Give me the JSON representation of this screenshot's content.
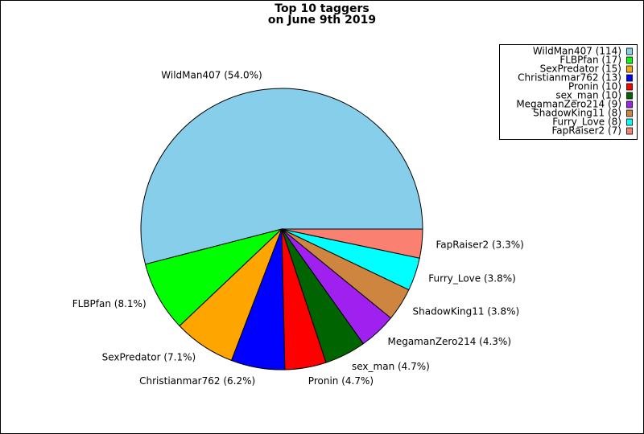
{
  "chart_data": {
    "type": "pie",
    "title": "Top 10 taggers",
    "subtitle": "on June 9th 2019",
    "categories": [
      "WildMan407",
      "FLBPfan",
      "SexPredator",
      "Christianmar762",
      "Pronin",
      "sex_man",
      "MegamanZero214",
      "ShadowKing11",
      "Furry_Love",
      "FapRaiser2"
    ],
    "values": [
      114,
      17,
      15,
      13,
      10,
      10,
      9,
      8,
      8,
      7
    ],
    "value_labels": [
      "WildMan407 (54.0%)",
      "FLBPfan (8.1%)",
      "SexPredator (7.1%)",
      "Christianmar762 (6.2%)",
      "Pronin (4.7%)",
      "sex_man (4.7%)",
      "MegamanZero214 (4.3%)",
      "ShadowKing11 (3.8%)",
      "Furry_Love (3.8%)",
      "FapRaiser2 (3.3%)"
    ],
    "legend_labels": [
      "WildMan407 (114)",
      "FLBPfan (17)",
      "SexPredator (15)",
      "Christianmar762 (13)",
      "Pronin (10)",
      "sex_man (10)",
      "MegamanZero214 (9)",
      "ShadowKing11 (8)",
      "Furry_Love (8)",
      "FapRaiser2 (7)"
    ],
    "colors": [
      "#87ceeb",
      "#00ff00",
      "#ffa500",
      "#0000ff",
      "#ff0000",
      "#006400",
      "#a020f0",
      "#cd853f",
      "#00ffff",
      "#fa8072"
    ],
    "legend": "upper right"
  }
}
